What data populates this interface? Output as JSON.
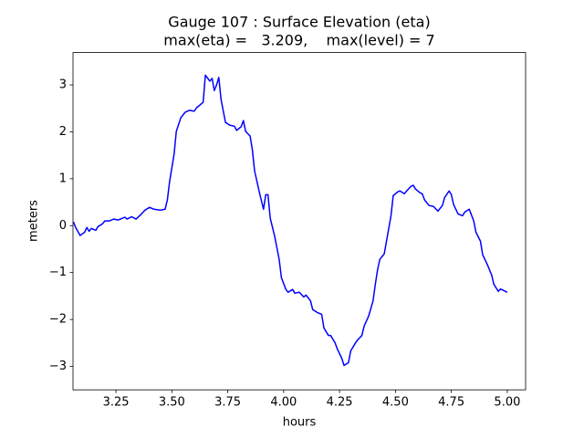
{
  "chart_data": {
    "type": "line",
    "title": "Gauge 107 : Surface Elevation (eta)",
    "subtitle": "max(eta) =   3.209,    max(level) = 7",
    "x_label": "hours",
    "y_label": "meters",
    "xlim": [
      3.058,
      5.082
    ],
    "ylim": [
      -3.5,
      3.69
    ],
    "xticks": [
      3.25,
      {
        "value": 3.5,
        "label": "3.50"
      },
      3.75,
      {
        "value": 4,
        "label": "4.00"
      },
      4.25,
      {
        "value": 4.5,
        "label": "4.50"
      },
      4.75,
      {
        "value": 5,
        "label": "5.00"
      }
    ],
    "yticks": [
      {
        "value": -3,
        "label": "−3"
      },
      {
        "value": -2,
        "label": "−2"
      },
      {
        "value": -1,
        "label": "−1"
      },
      0,
      1,
      2,
      3
    ],
    "series": [
      {
        "color": "#0000ff",
        "x": [
          3.06,
          3.07,
          3.09,
          3.11,
          3.12,
          3.13,
          3.14,
          3.16,
          3.17,
          3.19,
          3.2,
          3.22,
          3.24,
          3.26,
          3.29,
          3.3,
          3.32,
          3.34,
          3.36,
          3.38,
          3.4,
          3.42,
          3.45,
          3.47,
          3.48,
          3.49,
          3.51,
          3.52,
          3.54,
          3.56,
          3.58,
          3.6,
          3.61,
          3.64,
          3.65,
          3.67,
          3.68,
          3.69,
          3.7,
          3.71,
          3.72,
          3.74,
          3.76,
          3.78,
          3.79,
          3.81,
          3.82,
          3.83,
          3.85,
          3.86,
          3.87,
          3.89,
          3.91,
          3.92,
          3.93,
          3.94,
          3.96,
          3.98,
          3.99,
          4.01,
          4.02,
          4.04,
          4.05,
          4.07,
          4.09,
          4.1,
          4.12,
          4.13,
          4.15,
          4.17,
          4.18,
          4.2,
          4.21,
          4.23,
          4.24,
          4.26,
          4.27,
          4.29,
          4.3,
          4.32,
          4.33,
          4.35,
          4.36,
          4.38,
          4.4,
          4.41,
          4.42,
          4.43,
          4.45,
          4.46,
          4.48,
          4.49,
          4.51,
          4.52,
          4.54,
          4.55,
          4.57,
          4.58,
          4.59,
          4.61,
          4.62,
          4.63,
          4.65,
          4.67,
          4.69,
          4.71,
          4.72,
          4.74,
          4.75,
          4.76,
          4.78,
          4.8,
          4.81,
          4.83,
          4.85,
          4.86,
          4.88,
          4.89,
          4.91,
          4.93,
          4.94,
          4.96,
          4.97,
          5.0
        ],
        "values": [
          0.08,
          -0.04,
          -0.21,
          -0.14,
          -0.04,
          -0.12,
          -0.06,
          -0.1,
          -0.02,
          0.04,
          0.1,
          0.1,
          0.14,
          0.12,
          0.18,
          0.14,
          0.19,
          0.14,
          0.23,
          0.33,
          0.39,
          0.35,
          0.33,
          0.35,
          0.55,
          0.94,
          1.52,
          2.01,
          2.3,
          2.42,
          2.46,
          2.44,
          2.51,
          2.63,
          3.209,
          3.08,
          3.14,
          2.88,
          3.0,
          3.16,
          2.69,
          2.2,
          2.14,
          2.12,
          2.03,
          2.11,
          2.24,
          2.01,
          1.91,
          1.62,
          1.17,
          0.74,
          0.35,
          0.66,
          0.66,
          0.16,
          -0.23,
          -0.72,
          -1.11,
          -1.36,
          -1.42,
          -1.36,
          -1.44,
          -1.42,
          -1.52,
          -1.48,
          -1.6,
          -1.79,
          -1.85,
          -1.89,
          -2.18,
          -2.34,
          -2.34,
          -2.5,
          -2.63,
          -2.83,
          -2.98,
          -2.92,
          -2.67,
          -2.51,
          -2.44,
          -2.34,
          -2.14,
          -1.93,
          -1.6,
          -1.25,
          -0.94,
          -0.72,
          -0.6,
          -0.33,
          0.21,
          0.64,
          0.72,
          0.74,
          0.68,
          0.74,
          0.84,
          0.86,
          0.78,
          0.7,
          0.68,
          0.55,
          0.43,
          0.41,
          0.31,
          0.43,
          0.6,
          0.74,
          0.66,
          0.45,
          0.25,
          0.21,
          0.29,
          0.35,
          0.1,
          -0.14,
          -0.33,
          -0.62,
          -0.82,
          -1.05,
          -1.25,
          -1.4,
          -1.35,
          -1.42
        ]
      }
    ]
  }
}
